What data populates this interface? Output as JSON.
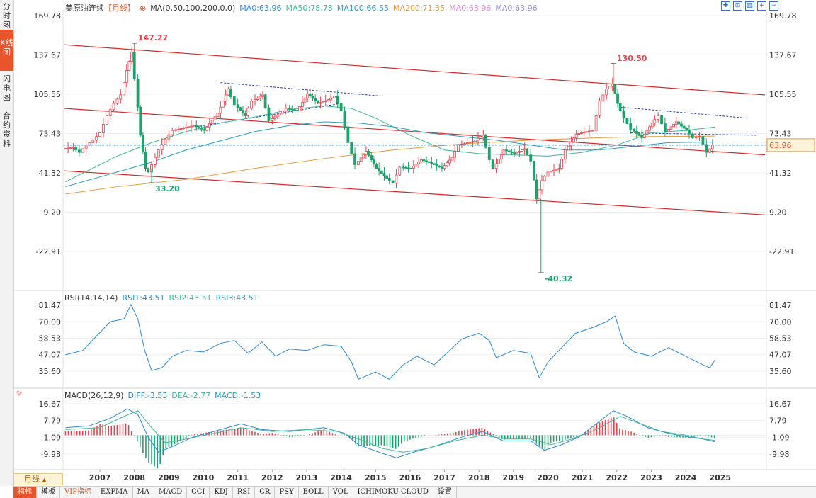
{
  "sidebar": {
    "tabs": [
      "分时图",
      "K线图",
      "闪电图",
      "合约资料"
    ]
  },
  "header": {
    "instrument": "美原油连续",
    "period_tag": "【月线】",
    "ma_items": [
      {
        "label": "MA(0,50,100,200,0,0)",
        "color": "#333333"
      },
      {
        "label": "MA0:63.96",
        "color": "#2a8ad4"
      },
      {
        "label": "MA50:78.78",
        "color": "#3cb99a"
      },
      {
        "label": "MA100:66.55",
        "color": "#2a9fbf"
      },
      {
        "label": "MA200:71.35",
        "color": "#e89a3c"
      },
      {
        "label": "MA0:63.96",
        "color": "#d98ad9"
      },
      {
        "label": "MA0:63.96",
        "color": "#9a8ad9"
      }
    ]
  },
  "toolbar_icons": [
    "grid-icon",
    "fit-icon",
    "layout-icon",
    "zoom-in-icon",
    "zoom-out-icon"
  ],
  "rsi": {
    "title": "RSI(14,14,14)",
    "rsi1": "RSI1:43.51",
    "rsi2": "RSI2:43.51",
    "rsi3": "RSI3:43.51"
  },
  "macd": {
    "title": "MACD(26,12,9)",
    "diff": "DIFF:-3.53",
    "dea": "DEA:-2.77",
    "macd": "MACD:-1.53"
  },
  "period_button": "月线",
  "bottom_tabs": [
    "指标",
    "模板",
    "VIP指标",
    "EXPMA",
    "MA",
    "MACD",
    "CCI",
    "KDJ",
    "RSI",
    "CR",
    "PSY",
    "BOLL",
    "VOL",
    "ICHIMOKU CLOUD",
    "设置"
  ],
  "colors": {
    "up": "#e8414b",
    "down": "#1aa36a",
    "channel": "#d42a2a",
    "accent": "#e8542c"
  },
  "chart_data": {
    "type": "candlestick",
    "price_axis": {
      "ticks": [
        "169.78",
        "137.67",
        "105.55",
        "73.43",
        "41.32",
        "9.20",
        "-22.91"
      ],
      "ylim": [
        -40.32,
        169.78
      ]
    },
    "x_labels": [
      "2007",
      "2008",
      "2009",
      "2010",
      "2011",
      "2012",
      "2013",
      "2014",
      "2015",
      "2016",
      "2017",
      "2018",
      "2019",
      "2020",
      "2021",
      "2022",
      "2023",
      "2024",
      "2025"
    ],
    "last_price": "63.96",
    "annotations": [
      {
        "text": "147.27",
        "x": 2008.5,
        "y": 147.27,
        "kind": "high"
      },
      {
        "text": "33.20",
        "x": 2009.0,
        "y": 33.2,
        "kind": "low"
      },
      {
        "text": "130.50",
        "x": 2022.4,
        "y": 130.5,
        "kind": "high"
      },
      {
        "text": "-40.32",
        "x": 2020.3,
        "y": -40.32,
        "kind": "low"
      }
    ],
    "close_series": [
      [
        2006.5,
        61
      ],
      [
        2006.8,
        62
      ],
      [
        2007.0,
        58
      ],
      [
        2007.2,
        64
      ],
      [
        2007.4,
        68
      ],
      [
        2007.6,
        74
      ],
      [
        2007.8,
        88
      ],
      [
        2008.0,
        98
      ],
      [
        2008.2,
        105
      ],
      [
        2008.35,
        125
      ],
      [
        2008.5,
        140
      ],
      [
        2008.6,
        118
      ],
      [
        2008.75,
        72
      ],
      [
        2008.9,
        45
      ],
      [
        2009.0,
        42
      ],
      [
        2009.1,
        48
      ],
      [
        2009.3,
        60
      ],
      [
        2009.5,
        69
      ],
      [
        2009.7,
        76
      ],
      [
        2010.0,
        78
      ],
      [
        2010.3,
        80
      ],
      [
        2010.6,
        76
      ],
      [
        2011.0,
        90
      ],
      [
        2011.3,
        110
      ],
      [
        2011.5,
        97
      ],
      [
        2011.8,
        88
      ],
      [
        2012.0,
        100
      ],
      [
        2012.3,
        105
      ],
      [
        2012.5,
        84
      ],
      [
        2012.8,
        90
      ],
      [
        2013.0,
        94
      ],
      [
        2013.3,
        92
      ],
      [
        2013.6,
        106
      ],
      [
        2013.9,
        98
      ],
      [
        2014.2,
        101
      ],
      [
        2014.4,
        104
      ],
      [
        2014.6,
        92
      ],
      [
        2014.8,
        66
      ],
      [
        2015.0,
        48
      ],
      [
        2015.3,
        59
      ],
      [
        2015.6,
        45
      ],
      [
        2015.9,
        37
      ],
      [
        2016.1,
        33
      ],
      [
        2016.3,
        46
      ],
      [
        2016.6,
        45
      ],
      [
        2016.9,
        52
      ],
      [
        2017.2,
        49
      ],
      [
        2017.5,
        45
      ],
      [
        2017.8,
        54
      ],
      [
        2018.0,
        64
      ],
      [
        2018.4,
        67
      ],
      [
        2018.7,
        72
      ],
      [
        2018.9,
        52
      ],
      [
        2019.0,
        45
      ],
      [
        2019.3,
        60
      ],
      [
        2019.6,
        57
      ],
      [
        2019.9,
        61
      ],
      [
        2020.1,
        51
      ],
      [
        2020.25,
        20
      ],
      [
        2020.4,
        35
      ],
      [
        2020.6,
        42
      ],
      [
        2020.9,
        45
      ],
      [
        2021.1,
        60
      ],
      [
        2021.4,
        73
      ],
      [
        2021.7,
        75
      ],
      [
        2021.9,
        76
      ],
      [
        2022.1,
        100
      ],
      [
        2022.3,
        110
      ],
      [
        2022.45,
        114
      ],
      [
        2022.6,
        98
      ],
      [
        2022.8,
        86
      ],
      [
        2023.0,
        77
      ],
      [
        2023.3,
        70
      ],
      [
        2023.6,
        82
      ],
      [
        2023.8,
        88
      ],
      [
        2024.0,
        75
      ],
      [
        2024.3,
        83
      ],
      [
        2024.6,
        76
      ],
      [
        2024.8,
        70
      ],
      [
        2025.0,
        71
      ],
      [
        2025.2,
        58
      ],
      [
        2025.35,
        64
      ]
    ],
    "ma_lines": [
      {
        "name": "MA50",
        "values": [
          [
            2006.5,
            34
          ],
          [
            2008.0,
            55
          ],
          [
            2009.0,
            66
          ],
          [
            2010.0,
            75
          ],
          [
            2011.0,
            82
          ],
          [
            2012.0,
            87
          ],
          [
            2013.0,
            93
          ],
          [
            2014.0,
            96
          ],
          [
            2014.8,
            94
          ],
          [
            2015.5,
            86
          ],
          [
            2016.5,
            72
          ],
          [
            2017.5,
            60
          ],
          [
            2018.5,
            57
          ],
          [
            2019.5,
            56
          ],
          [
            2020.5,
            55
          ],
          [
            2021.5,
            58
          ],
          [
            2022.5,
            64
          ],
          [
            2023.5,
            74
          ],
          [
            2024.5,
            76
          ],
          [
            2025.35,
            78.78
          ]
        ]
      },
      {
        "name": "MA100",
        "values": [
          [
            2006.5,
            30
          ],
          [
            2009.0,
            50
          ],
          [
            2010.0,
            60
          ],
          [
            2012.0,
            75
          ],
          [
            2013.0,
            80
          ],
          [
            2014.0,
            83
          ],
          [
            2015.0,
            82
          ],
          [
            2016.0,
            79
          ],
          [
            2017.0,
            74
          ],
          [
            2018.0,
            71
          ],
          [
            2019.0,
            68
          ],
          [
            2020.0,
            64
          ],
          [
            2021.0,
            60
          ],
          [
            2022.0,
            60
          ],
          [
            2023.0,
            63
          ],
          [
            2024.0,
            66
          ],
          [
            2025.35,
            66.55
          ]
        ]
      },
      {
        "name": "MA200",
        "values": [
          [
            2006.5,
            24
          ],
          [
            2008.0,
            30
          ],
          [
            2010.0,
            36
          ],
          [
            2012.0,
            45
          ],
          [
            2014.0,
            53
          ],
          [
            2016.0,
            60
          ],
          [
            2018.0,
            65
          ],
          [
            2020.0,
            68
          ],
          [
            2022.0,
            70
          ],
          [
            2023.5,
            71
          ],
          [
            2025.35,
            71.35
          ]
        ]
      }
    ],
    "rsi_axis": {
      "ticks": [
        "81.47",
        "70.00",
        "58.53",
        "47.07",
        "35.60"
      ]
    },
    "rsi_series": [
      [
        2006.5,
        47
      ],
      [
        2007.0,
        50
      ],
      [
        2007.4,
        60
      ],
      [
        2007.8,
        70
      ],
      [
        2008.2,
        72
      ],
      [
        2008.4,
        82
      ],
      [
        2008.6,
        72
      ],
      [
        2008.8,
        50
      ],
      [
        2009.0,
        36
      ],
      [
        2009.3,
        38
      ],
      [
        2009.6,
        46
      ],
      [
        2010.0,
        50
      ],
      [
        2010.5,
        49
      ],
      [
        2011.0,
        55
      ],
      [
        2011.4,
        57
      ],
      [
        2011.8,
        48
      ],
      [
        2012.2,
        56
      ],
      [
        2012.6,
        46
      ],
      [
        2013.0,
        51
      ],
      [
        2013.5,
        50
      ],
      [
        2014.0,
        54
      ],
      [
        2014.5,
        53
      ],
      [
        2014.8,
        42
      ],
      [
        2015.0,
        30
      ],
      [
        2015.5,
        35
      ],
      [
        2015.9,
        30
      ],
      [
        2016.3,
        40
      ],
      [
        2016.7,
        46
      ],
      [
        2017.2,
        40
      ],
      [
        2017.6,
        49
      ],
      [
        2018.0,
        58
      ],
      [
        2018.5,
        62
      ],
      [
        2018.8,
        57
      ],
      [
        2019.0,
        45
      ],
      [
        2019.5,
        50
      ],
      [
        2020.0,
        48
      ],
      [
        2020.25,
        31
      ],
      [
        2020.5,
        42
      ],
      [
        2020.9,
        52
      ],
      [
        2021.3,
        62
      ],
      [
        2021.8,
        66
      ],
      [
        2022.2,
        70
      ],
      [
        2022.45,
        74
      ],
      [
        2022.7,
        55
      ],
      [
        2023.0,
        49
      ],
      [
        2023.5,
        46
      ],
      [
        2024.0,
        52
      ],
      [
        2024.5,
        46
      ],
      [
        2025.0,
        40
      ],
      [
        2025.2,
        38
      ],
      [
        2025.35,
        43.51
      ]
    ],
    "macd_axis": {
      "ticks": [
        "16.67",
        "7.79",
        "-1.09",
        "-9.98"
      ]
    },
    "macd_diff": [
      [
        2006.5,
        4
      ],
      [
        2007.2,
        5
      ],
      [
        2007.8,
        9
      ],
      [
        2008.3,
        14
      ],
      [
        2008.6,
        11
      ],
      [
        2008.9,
        -1
      ],
      [
        2009.2,
        -9
      ],
      [
        2009.6,
        -6
      ],
      [
        2010.2,
        -1
      ],
      [
        2011.0,
        3
      ],
      [
        2011.6,
        6
      ],
      [
        2012.2,
        3
      ],
      [
        2013.0,
        2
      ],
      [
        2014.0,
        4
      ],
      [
        2014.6,
        1
      ],
      [
        2015.0,
        -5
      ],
      [
        2015.6,
        -9
      ],
      [
        2016.1,
        -12
      ],
      [
        2016.6,
        -9
      ],
      [
        2017.2,
        -6
      ],
      [
        2018.0,
        -1
      ],
      [
        2018.6,
        2
      ],
      [
        2019.2,
        -3
      ],
      [
        2020.0,
        -3
      ],
      [
        2020.4,
        -8
      ],
      [
        2020.9,
        -5
      ],
      [
        2021.4,
        -1
      ],
      [
        2021.9,
        6
      ],
      [
        2022.4,
        13
      ],
      [
        2022.8,
        10
      ],
      [
        2023.4,
        4
      ],
      [
        2024.0,
        1
      ],
      [
        2024.6,
        -1
      ],
      [
        2025.0,
        -2
      ],
      [
        2025.35,
        -3.53
      ]
    ],
    "macd_dea": [
      [
        2006.5,
        3
      ],
      [
        2007.5,
        4
      ],
      [
        2008.2,
        10
      ],
      [
        2008.6,
        13
      ],
      [
        2009.0,
        4
      ],
      [
        2009.4,
        -4
      ],
      [
        2010.0,
        -2
      ],
      [
        2010.8,
        1
      ],
      [
        2011.6,
        4
      ],
      [
        2012.5,
        2
      ],
      [
        2013.5,
        3
      ],
      [
        2014.4,
        2
      ],
      [
        2015.0,
        -2
      ],
      [
        2015.7,
        -7
      ],
      [
        2016.3,
        -9
      ],
      [
        2017.0,
        -7
      ],
      [
        2017.8,
        -3
      ],
      [
        2018.6,
        0
      ],
      [
        2019.3,
        -2
      ],
      [
        2020.0,
        -2
      ],
      [
        2020.6,
        -5
      ],
      [
        2021.2,
        -2
      ],
      [
        2021.9,
        3
      ],
      [
        2022.6,
        10
      ],
      [
        2023.2,
        6
      ],
      [
        2023.8,
        2
      ],
      [
        2024.5,
        0
      ],
      [
        2025.0,
        -2
      ],
      [
        2025.35,
        -2.77
      ]
    ]
  }
}
